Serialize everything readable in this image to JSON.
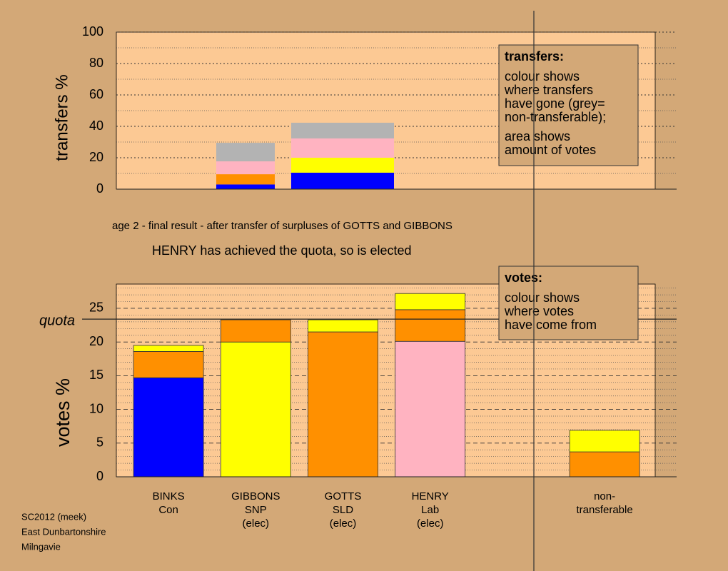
{
  "chart_data": [
    {
      "type": "bar",
      "stacked": true,
      "ylabel": "transfers %",
      "ylim": [
        0,
        100
      ],
      "yticks": [
        0,
        20,
        40,
        60,
        80,
        100
      ],
      "minor_yticks": [
        10,
        30,
        50,
        70,
        90
      ],
      "stacks": [
        [
          {
            "color": "#0000ff",
            "value": 3
          },
          {
            "color": "#ff9000",
            "value": 6.5
          },
          {
            "color": "#ffb3c1",
            "value": 8.2
          },
          {
            "color": "#b3b3b3",
            "value": 11.8
          }
        ],
        [
          {
            "color": "#0000ff",
            "value": 10.5
          },
          {
            "color": "#ffff00",
            "value": 9.5
          },
          {
            "color": "#ffb3c1",
            "value": 12.3
          },
          {
            "color": "#b3b3b3",
            "value": 10
          }
        ]
      ],
      "legend_box": {
        "title": "transfers:",
        "lines": [
          "colour shows",
          "where transfers",
          "have gone (grey=",
          "non-transferable);",
          "area shows",
          "amount of votes"
        ]
      }
    },
    {
      "type": "bar",
      "stacked": true,
      "ylabel": "votes %",
      "ylim": [
        0,
        28.6
      ],
      "yticks": [
        0,
        5,
        10,
        15,
        20,
        25
      ],
      "minor_yticks": [
        1,
        2,
        3,
        4,
        6,
        7,
        8,
        9,
        11,
        12,
        13,
        14,
        16,
        17,
        18,
        19,
        21,
        22,
        23,
        24,
        26,
        27,
        28
      ],
      "quota": {
        "label": "quota",
        "value": 23.4
      },
      "categories": [
        [
          "BINKS",
          "Con"
        ],
        [
          "GIBBONS",
          "SNP",
          "(elec)"
        ],
        [
          "GOTTS",
          "SLD",
          "(elec)"
        ],
        [
          "HENRY",
          "Lab",
          "(elec)"
        ],
        null,
        [
          "non-",
          "transferable"
        ]
      ],
      "stacks": [
        [
          {
            "color": "#0000ff",
            "value": 14.7
          },
          {
            "color": "#ff9000",
            "value": 3.9
          },
          {
            "color": "#ffff00",
            "value": 0.9
          }
        ],
        [
          {
            "color": "#ffff00",
            "value": 20.0
          },
          {
            "color": "#ff9000",
            "value": 3.3
          }
        ],
        [
          {
            "color": "#ff9000",
            "value": 21.5
          },
          {
            "color": "#ffff00",
            "value": 1.8
          }
        ],
        [
          {
            "color": "#ffb3c1",
            "value": 20.1
          },
          {
            "color": "#ff9000",
            "value": 4.7
          },
          {
            "color": "#ffff00",
            "value": 2.4
          }
        ],
        null,
        [
          {
            "color": "#ff9000",
            "value": 3.7
          },
          {
            "color": "#ffff00",
            "value": 3.2
          }
        ]
      ],
      "legend_box": {
        "title": "votes:",
        "lines": [
          "colour shows",
          "where votes",
          "have come from"
        ]
      }
    }
  ],
  "caption": "age 2 - final result - after transfer of surpluses of GOTTS and GIBBONS",
  "headline": "HENRY has achieved the quota, so is elected",
  "footer": [
    "SC2012 (meek)",
    "East Dunbartonshire",
    "Milngavie"
  ]
}
